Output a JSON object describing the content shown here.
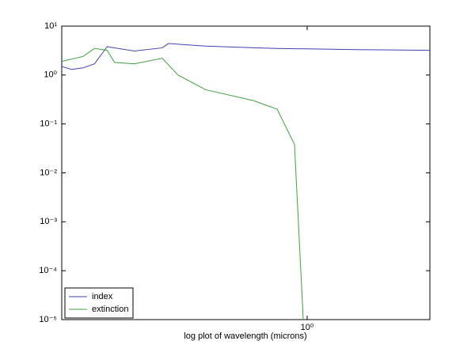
{
  "chart_data": {
    "type": "line",
    "xlabel": "log plot of wavelength (microns)",
    "xscale": "log",
    "yscale": "log",
    "legend": "lower left",
    "xlim": [
      0.25,
      2.0
    ],
    "ylim": [
      1e-05,
      10
    ],
    "xticks": [
      {
        "value": 1,
        "label": "10⁰"
      }
    ],
    "yticks": [
      {
        "value": 10,
        "label": "10¹"
      },
      {
        "value": 1,
        "label": "10⁰"
      },
      {
        "value": 0.1,
        "label": "10⁻¹"
      },
      {
        "value": 0.01,
        "label": "10⁻²"
      },
      {
        "value": 0.001,
        "label": "10⁻³"
      },
      {
        "value": 0.0001,
        "label": "10⁻⁴"
      },
      {
        "value": 1e-05,
        "label": "10⁻⁵"
      }
    ],
    "series": [
      {
        "name": "index",
        "color": "#4040b0",
        "x": [
          0.25,
          0.264,
          0.282,
          0.301,
          0.323,
          0.377,
          0.441,
          0.457,
          0.564,
          0.738,
          0.844,
          1.32,
          2.0
        ],
        "values": [
          1.5,
          1.3,
          1.4,
          1.7,
          3.8,
          3.1,
          3.6,
          4.4,
          3.9,
          3.6,
          3.5,
          3.3,
          3.2
        ]
      },
      {
        "name": "extinction",
        "color": "#40a040",
        "x": [
          0.25,
          0.282,
          0.301,
          0.323,
          0.337,
          0.377,
          0.441,
          0.482,
          0.564,
          0.738,
          0.844,
          0.931,
          0.978
        ],
        "values": [
          1.9,
          2.4,
          3.5,
          3.2,
          1.8,
          1.7,
          2.2,
          1.0,
          0.5,
          0.3,
          0.2,
          0.038,
          1e-05
        ]
      }
    ]
  }
}
